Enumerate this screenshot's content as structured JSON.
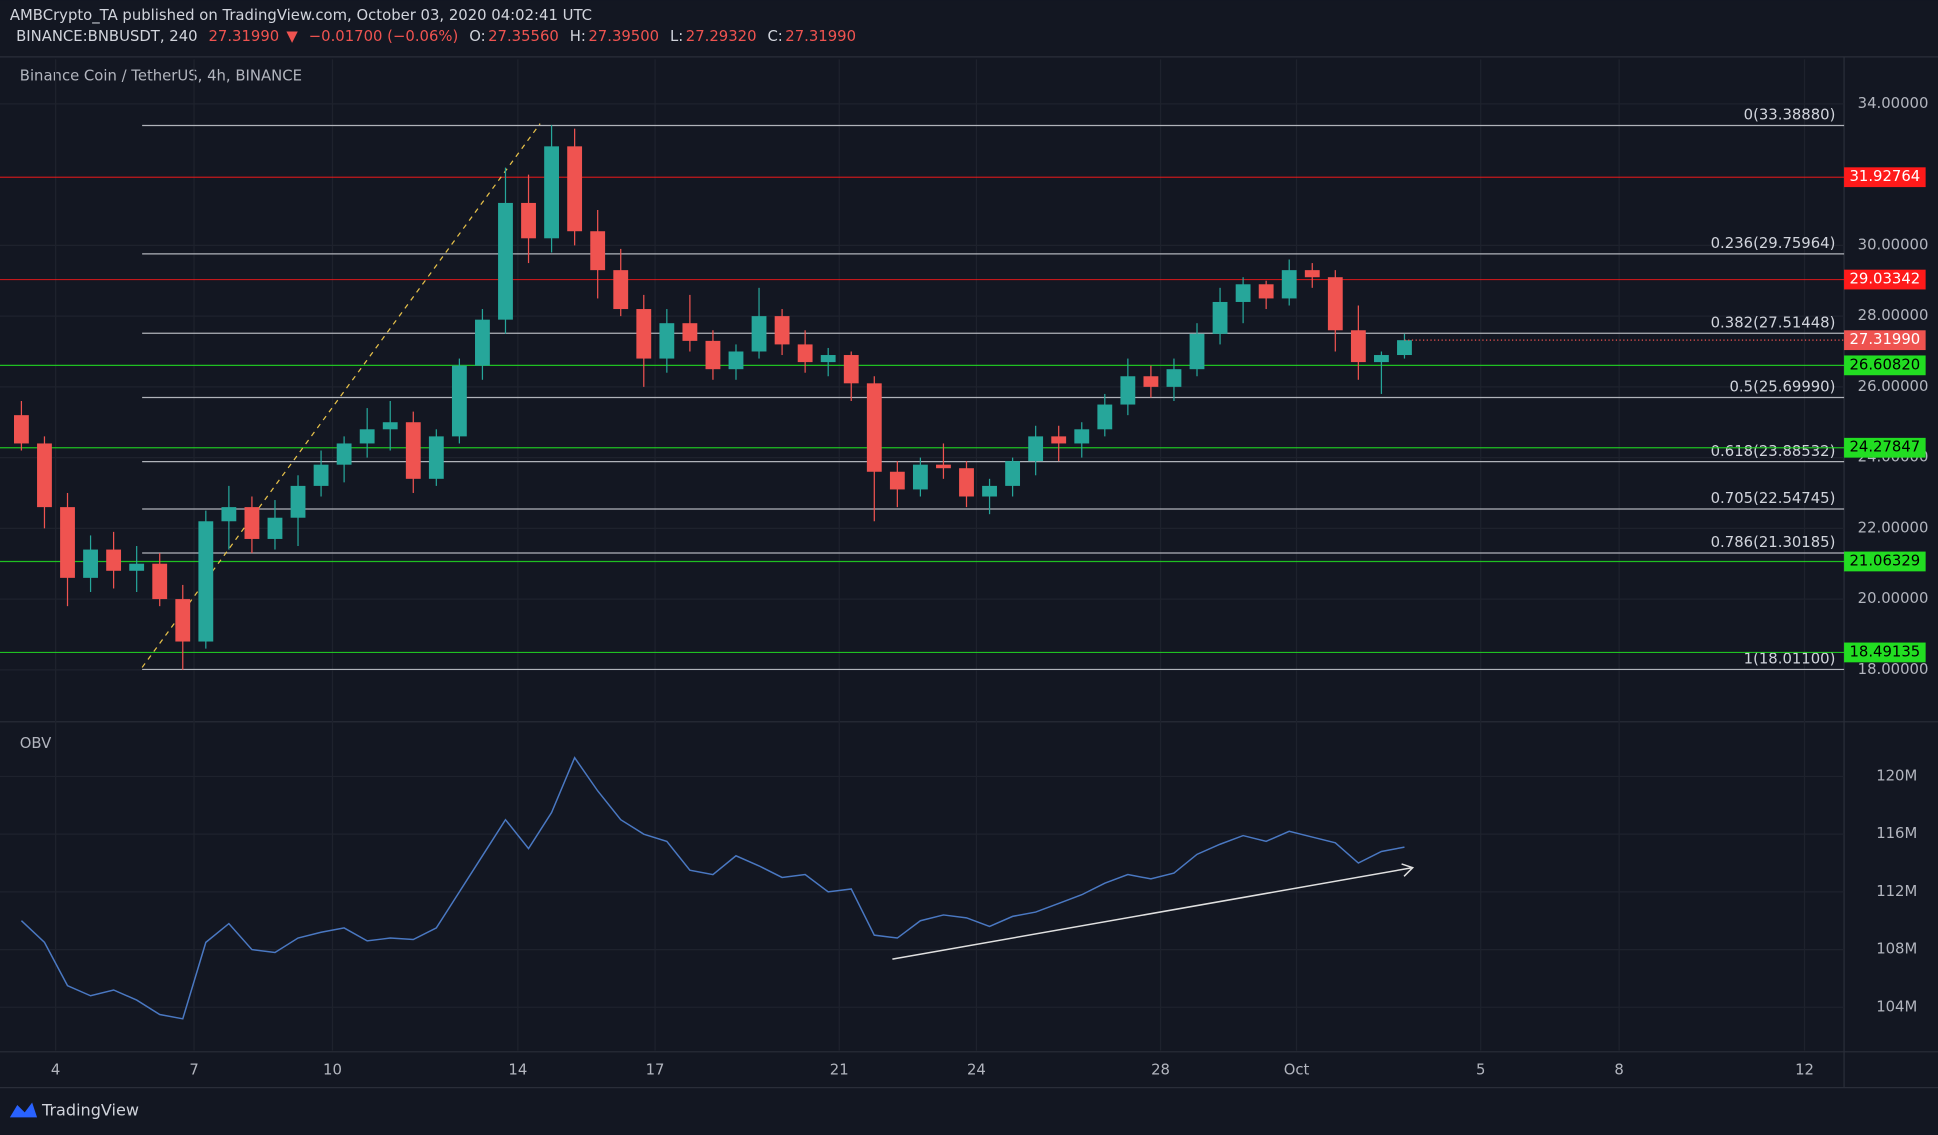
{
  "header": {
    "line1": "AMBCrypto_TA published on TradingView.com, October 03, 2020 04:02:41 UTC",
    "symbol": "BINANCE:BNBUSDT, 240",
    "price": "27.31990",
    "arrow": "▼",
    "change": "−0.01700 (−0.06%)",
    "ohlc": [
      {
        "key": "O:",
        "value": "27.35560"
      },
      {
        "key": "H:",
        "value": "27.39500"
      },
      {
        "key": "L:",
        "value": "27.29320"
      },
      {
        "key": "C:",
        "value": "27.31990"
      }
    ]
  },
  "footer": {
    "brand": "TradingView"
  },
  "chart_data": [
    {
      "type": "candlestick",
      "title": "Binance Coin / TetherUS, 4h, BINANCE",
      "up_color": "#26a69a",
      "down_color": "#ef5350",
      "ylim": [
        16.6,
        35.26
      ],
      "yticks": [
        {
          "value": 18,
          "label": "18.00000"
        },
        {
          "value": 20,
          "label": "20.00000"
        },
        {
          "value": 22,
          "label": "22.00000"
        },
        {
          "value": 24,
          "label": "24.00000"
        },
        {
          "value": 26,
          "label": "26.00000"
        },
        {
          "value": 28,
          "label": "28.00000"
        },
        {
          "value": 30,
          "label": "30.00000"
        },
        {
          "value": 34,
          "label": "34.00000"
        }
      ],
      "xticks": [
        "4",
        "7",
        "10",
        "14",
        "17",
        "21",
        "24",
        "28",
        "Oct",
        "5",
        "8",
        "12"
      ],
      "open": [
        25.2,
        24.4,
        22.6,
        20.6,
        21.4,
        20.8,
        21.0,
        20.0,
        18.8,
        22.2,
        22.6,
        21.7,
        22.3,
        23.2,
        23.8,
        24.4,
        24.8,
        25.0,
        23.4,
        24.6,
        26.6,
        27.9,
        31.2,
        30.2,
        32.8,
        30.4,
        29.3,
        28.2,
        26.8,
        27.8,
        27.3,
        26.5,
        27.0,
        28.0,
        27.2,
        26.7,
        26.9,
        26.1,
        23.6,
        23.1,
        23.8,
        23.7,
        22.9,
        23.2,
        23.9,
        24.6,
        24.4,
        24.8,
        25.5,
        26.3,
        26.0,
        26.5,
        27.5,
        28.4,
        28.9,
        28.5,
        29.3,
        29.1,
        27.6,
        26.7,
        26.9
      ],
      "high": [
        25.6,
        24.6,
        23.0,
        21.8,
        21.9,
        21.5,
        21.3,
        20.4,
        22.5,
        23.2,
        22.9,
        22.8,
        23.5,
        24.2,
        24.6,
        25.4,
        25.6,
        25.3,
        24.8,
        26.8,
        28.2,
        32.2,
        32.0,
        33.4,
        33.3,
        31.0,
        29.9,
        28.6,
        28.2,
        28.6,
        27.6,
        27.2,
        28.8,
        28.2,
        27.6,
        27.1,
        27.0,
        26.3,
        23.9,
        24.0,
        24.4,
        23.9,
        23.4,
        24.0,
        24.9,
        24.9,
        25.0,
        25.8,
        26.8,
        26.6,
        26.8,
        27.8,
        28.8,
        29.1,
        29.0,
        29.6,
        29.5,
        29.3,
        28.3,
        27.0,
        27.5
      ],
      "low": [
        24.2,
        22.0,
        19.8,
        20.2,
        20.3,
        20.2,
        19.8,
        18.0,
        18.6,
        21.4,
        21.3,
        21.4,
        21.5,
        22.9,
        23.3,
        24.0,
        24.2,
        23.0,
        23.2,
        24.4,
        26.2,
        27.5,
        29.5,
        29.8,
        30.0,
        28.5,
        28.0,
        26.0,
        26.4,
        27.0,
        26.2,
        26.2,
        26.8,
        26.9,
        26.4,
        26.3,
        25.6,
        22.2,
        22.6,
        22.9,
        23.4,
        22.6,
        22.4,
        22.9,
        23.5,
        23.9,
        24.0,
        24.6,
        25.2,
        25.7,
        25.6,
        26.3,
        27.2,
        27.8,
        28.2,
        28.3,
        28.8,
        27.0,
        26.2,
        25.8,
        26.8
      ],
      "close": [
        24.4,
        22.6,
        20.6,
        21.4,
        20.8,
        21.0,
        20.0,
        18.8,
        22.2,
        22.6,
        21.7,
        22.3,
        23.2,
        23.8,
        24.4,
        24.8,
        25.0,
        23.4,
        24.6,
        26.6,
        27.9,
        31.2,
        30.2,
        32.8,
        30.4,
        29.3,
        28.2,
        26.8,
        27.8,
        27.3,
        26.5,
        27.0,
        28.0,
        27.2,
        26.7,
        26.9,
        26.1,
        23.6,
        23.1,
        23.8,
        23.7,
        22.9,
        23.2,
        23.9,
        24.6,
        24.4,
        24.8,
        25.5,
        26.3,
        26.0,
        26.5,
        27.5,
        28.4,
        28.9,
        28.5,
        29.3,
        29.1,
        27.6,
        26.7,
        26.9,
        27.3199
      ],
      "fib_levels": [
        {
          "value": 33.3888,
          "label": "0(33.38880)"
        },
        {
          "value": 29.75964,
          "label": "0.236(29.75964)"
        },
        {
          "value": 27.51448,
          "label": "0.382(27.51448)"
        },
        {
          "value": 25.6999,
          "label": "0.5(25.69990)"
        },
        {
          "value": 23.88532,
          "label": "0.618(23.88532)"
        },
        {
          "value": 22.54745,
          "label": "0.705(22.54745)"
        },
        {
          "value": 21.30185,
          "label": "0.786(21.30185)"
        },
        {
          "value": 18.011,
          "label": "1(18.01100)"
        }
      ],
      "resistance_color": "#ff1a1a",
      "resistance": [
        {
          "value": 31.92764,
          "label": "31.92764"
        },
        {
          "value": 29.03342,
          "label": "29.03342"
        }
      ],
      "support_color": "#22dd22",
      "support": [
        {
          "value": 26.6082,
          "label": "26.60820"
        },
        {
          "value": 24.27847,
          "label": "24.27847"
        },
        {
          "value": 21.06329,
          "label": "21.06329"
        },
        {
          "value": 18.49135,
          "label": "18.49135"
        }
      ],
      "last_price": {
        "value": 27.3199,
        "label": "27.31990"
      }
    },
    {
      "type": "line",
      "title": "OBV",
      "color": "#4a78c2",
      "ylim": [
        101,
        123.7
      ],
      "yticks": [
        {
          "value": 104,
          "label": "104M"
        },
        {
          "value": 108,
          "label": "108M"
        },
        {
          "value": 112,
          "label": "112M"
        },
        {
          "value": 116,
          "label": "116M"
        },
        {
          "value": 120,
          "label": "120M"
        }
      ],
      "values": [
        110.0,
        108.5,
        105.5,
        104.8,
        105.2,
        104.5,
        103.5,
        103.2,
        108.5,
        109.8,
        108.0,
        107.8,
        108.8,
        109.2,
        109.5,
        108.6,
        108.8,
        108.7,
        109.5,
        112.0,
        114.5,
        117.0,
        115.0,
        117.5,
        121.3,
        119.0,
        117.0,
        116.0,
        115.5,
        113.5,
        113.2,
        114.5,
        113.8,
        113.0,
        113.2,
        112.0,
        112.2,
        109.0,
        108.8,
        110.0,
        110.4,
        110.2,
        109.6,
        110.3,
        110.6,
        111.2,
        111.8,
        112.6,
        113.2,
        112.9,
        113.3,
        114.6,
        115.3,
        115.9,
        115.5,
        116.2,
        115.8,
        115.4,
        114.0,
        114.8,
        115.1
      ]
    }
  ]
}
